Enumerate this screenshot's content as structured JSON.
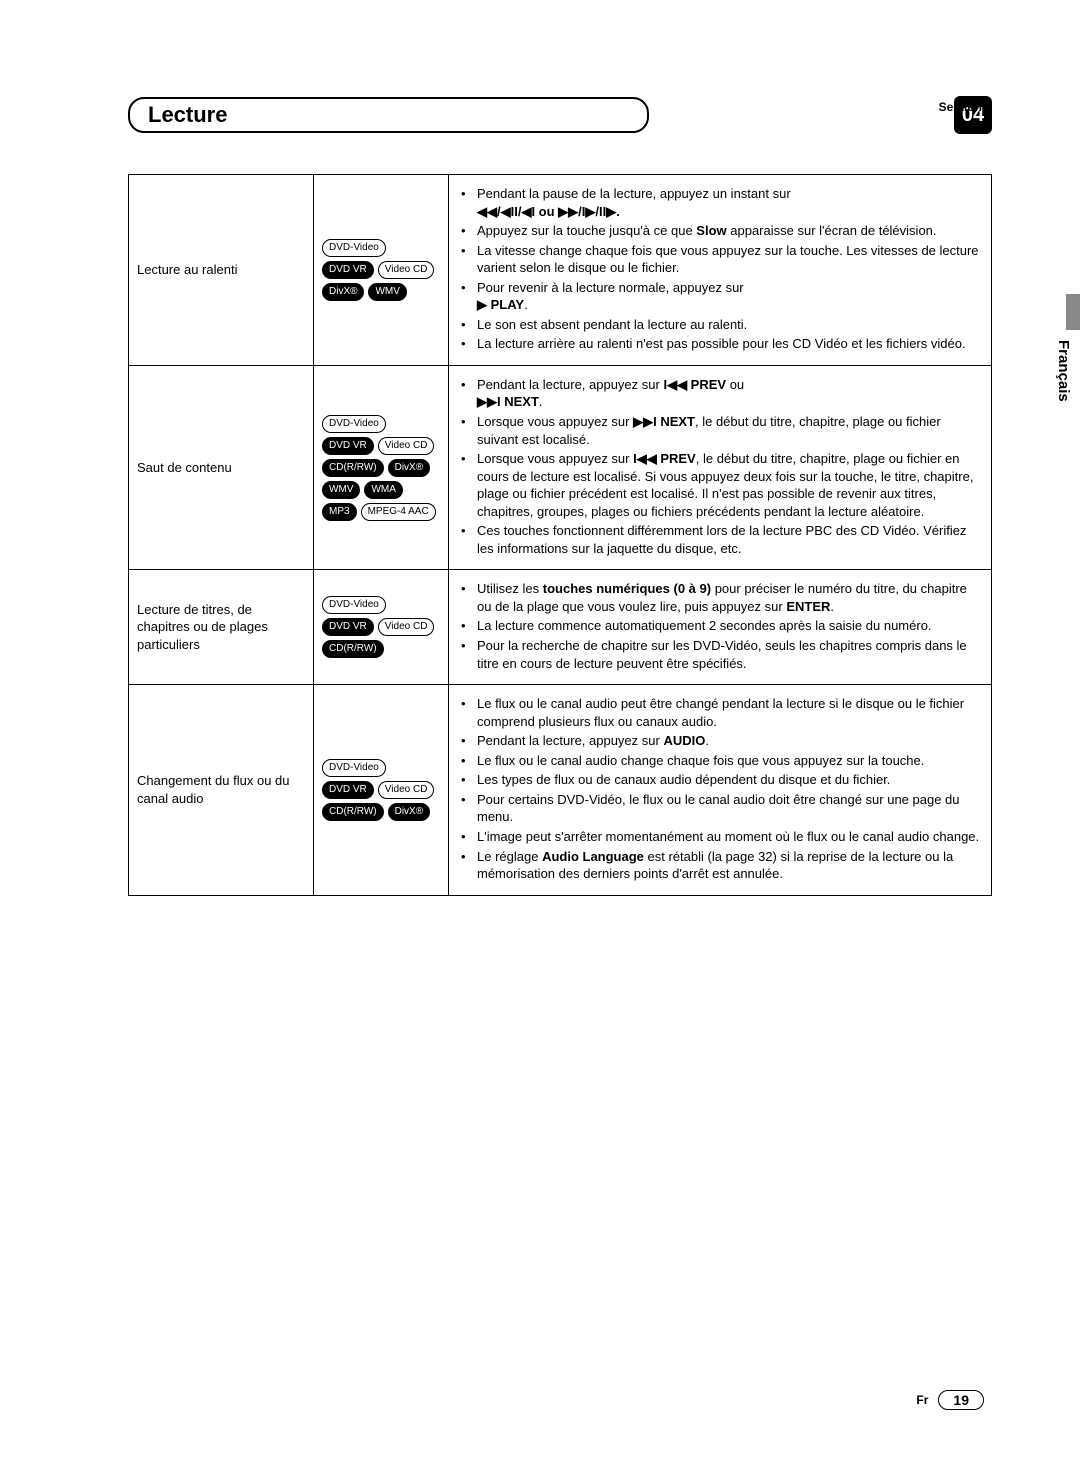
{
  "header": {
    "section_label": "Section",
    "title": "Lecture",
    "section_number": "04",
    "language_tab": "Français"
  },
  "badges": {
    "dvd_video": "DVD-Video",
    "dvd_vr": "DVD VR",
    "video_cd": "Video CD",
    "divx": "DivX®",
    "wmv": "WMV",
    "cd_rw": "CD(R/RW)",
    "wma": "WMA",
    "mp3": "MP3",
    "mpeg4aac": "MPEG-4 AAC"
  },
  "rows": {
    "r1": {
      "label": "Lecture au ralenti",
      "p1a": "Pendant la pause de la lecture, appuyez un instant sur",
      "p1b": "◀◀/◀II/◀I ou ▶▶/I▶/II▶.",
      "p2a": "Appuyez sur la touche jusqu'à ce que ",
      "p2b": "Slow",
      "p2c": " apparaisse sur l'écran de télévision.",
      "p3": "La vitesse change chaque fois que vous appuyez sur la touche. Les vitesses de lecture varient selon le disque ou le fichier.",
      "p4a": "Pour revenir à la lecture normale, appuyez sur ",
      "p4b": "▶ PLAY",
      "p4c": ".",
      "p5": "Le son est absent pendant la lecture au ralenti.",
      "p6": "La lecture arrière au ralenti n'est pas possible pour les CD Vidéo et les fichiers vidéo."
    },
    "r2": {
      "label": "Saut de contenu",
      "p1a": "Pendant la lecture, appuyez sur ",
      "p1b": "I◀◀ PREV",
      "p1c": " ou ",
      "p1d": "▶▶I NEXT",
      "p1e": ".",
      "p2a": "Lorsque vous appuyez sur ",
      "p2b": "▶▶I NEXT",
      "p2c": ", le début du titre, chapitre, plage ou fichier suivant est localisé.",
      "p3a": "Lorsque vous appuyez sur ",
      "p3b": "I◀◀ PREV",
      "p3c": ", le début du titre, chapitre, plage ou fichier en cours de lecture est localisé. Si vous appuyez deux fois sur la touche, le titre, chapitre, plage ou fichier précédent est localisé. Il n'est pas possible de revenir aux titres, chapitres, groupes, plages ou fichiers précédents pendant la lecture aléatoire.",
      "p4": "Ces touches fonctionnent différemment lors de la lecture PBC des CD Vidéo. Vérifiez les informations sur la jaquette du disque, etc."
    },
    "r3": {
      "label": "Lecture de titres, de chapitres ou de plages particuliers",
      "p1a": "Utilisez les ",
      "p1b": "touches numériques (0 à 9)",
      "p1c": " pour préciser le numéro du titre, du chapitre ou de la plage que vous voulez lire, puis appuyez sur ",
      "p1d": "ENTER",
      "p1e": ".",
      "p2": "La lecture commence automatiquement 2 secondes après la saisie du numéro.",
      "p3": "Pour la recherche de chapitre sur les DVD-Vidéo, seuls les chapitres compris dans le titre en cours de lecture peuvent être spécifiés."
    },
    "r4": {
      "label": "Changement du flux ou du canal audio",
      "p1": "Le flux ou le canal audio peut être changé pendant la lecture si le disque ou le fichier comprend plusieurs flux ou canaux audio.",
      "p2a": "Pendant la lecture, appuyez sur ",
      "p2b": "AUDIO",
      "p2c": ".",
      "p3": "Le flux ou le canal audio change chaque fois que vous appuyez sur la touche.",
      "p4": "Les types de flux ou de canaux audio dépendent du disque et du fichier.",
      "p5": "Pour certains DVD-Vidéo, le flux ou le canal audio doit être changé sur une page du menu.",
      "p6": "L'image peut s'arrêter momentanément au moment où le flux ou le canal audio change.",
      "p7a": "Le réglage ",
      "p7b": "Audio Language",
      "p7c": " est rétabli (la page 32) si la reprise de la lecture ou la mémorisation des derniers points d'arrêt est annulée."
    }
  },
  "footer": {
    "lang": "Fr",
    "page": "19"
  },
  "style": {
    "page_bg": "#ffffff",
    "text_color": "#000000",
    "badge_inv_bg": "#000000",
    "badge_inv_fg": "#ffffff",
    "border_color": "#000000",
    "title_fontsize": 22,
    "body_fontsize": 13,
    "badge_fontsize": 10
  }
}
